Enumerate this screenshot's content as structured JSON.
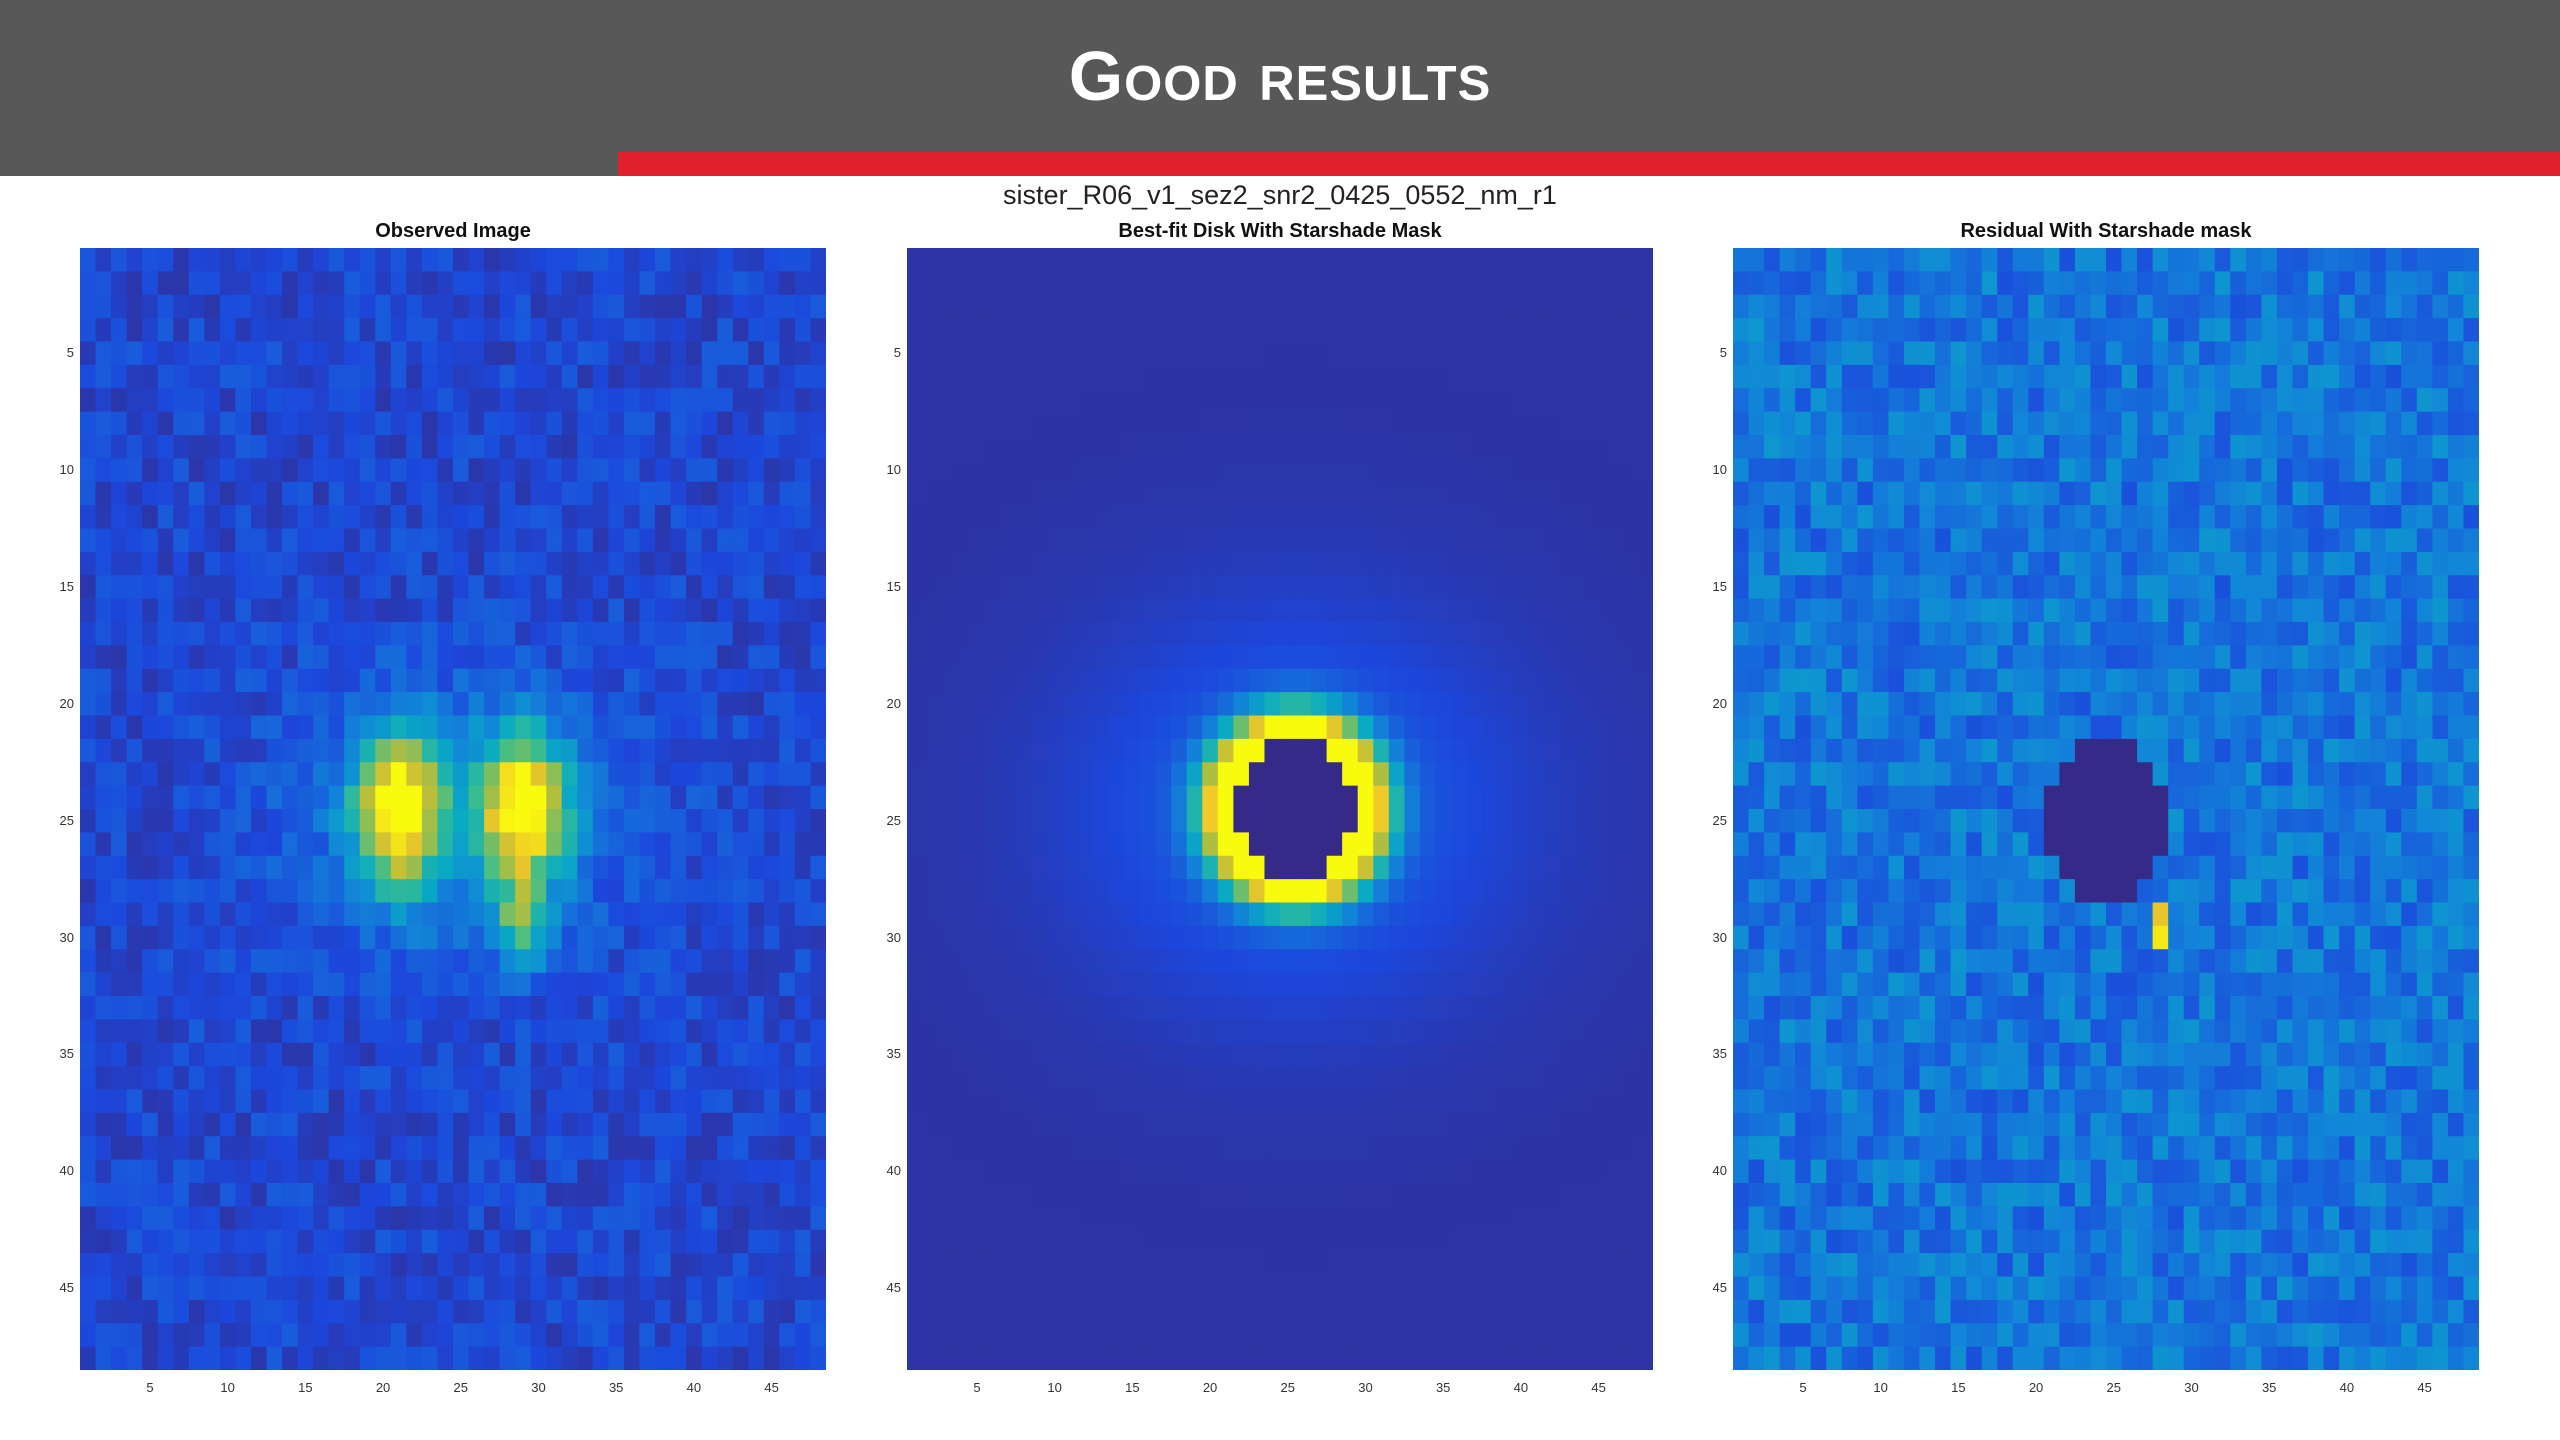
{
  "header": {
    "title": "Good results",
    "bg_color": "#585858",
    "accent_color": "#e0202a"
  },
  "figure": {
    "suptitle": "sister_R06_v1_sez2_snr2_0425_0552_nm_r1"
  },
  "chart_data": [
    {
      "type": "heatmap",
      "title": "Observed Image",
      "colormap": "parula",
      "xlim": [
        0.5,
        48.5
      ],
      "ylim": [
        0.5,
        48.5
      ],
      "xticks": [
        5,
        10,
        15,
        20,
        25,
        30,
        35,
        40,
        45
      ],
      "yticks": [
        5,
        10,
        15,
        20,
        25,
        30,
        35,
        40,
        45
      ],
      "model": {
        "background": 0.14,
        "noise": 0.08,
        "blobs": [
          {
            "x": 21,
            "y": 24.5,
            "sx": 2.0,
            "sy": 2.4,
            "amp": 0.86
          },
          {
            "x": 29,
            "y": 24.5,
            "sx": 2.0,
            "sy": 2.4,
            "amp": 0.84
          },
          {
            "x": 29,
            "y": 29.5,
            "sx": 1.0,
            "sy": 1.2,
            "amp": 0.5
          },
          {
            "x": 25,
            "y": 25,
            "sx": 8.0,
            "sy": 4.0,
            "amp": 0.18
          }
        ]
      }
    },
    {
      "type": "heatmap",
      "title": "Best-fit Disk With Starshade Mask",
      "colormap": "parula",
      "xlim": [
        0.5,
        48.5
      ],
      "ylim": [
        0.5,
        48.5
      ],
      "xticks": [
        5,
        10,
        15,
        20,
        25,
        30,
        35,
        40,
        45
      ],
      "yticks": [
        5,
        10,
        15,
        20,
        25,
        30,
        35,
        40,
        45
      ],
      "model": {
        "background": 0.05,
        "ring": {
          "x": 25.5,
          "y": 24.5,
          "ax": 4.3,
          "ay": 3.0,
          "width": 1.6,
          "amp": 0.95
        },
        "halo": {
          "x": 25.5,
          "y": 24.5,
          "sx": 10,
          "sy": 6,
          "amp": 0.2
        },
        "mask": {
          "x": 25.5,
          "y": 24.5,
          "rx": 3.6,
          "ry": 3.4,
          "value": 0.0
        }
      }
    },
    {
      "type": "heatmap",
      "title": "Residual With Starshade mask",
      "colormap": "parula",
      "xlim": [
        0.5,
        48.5
      ],
      "ylim": [
        0.5,
        48.5
      ],
      "xticks": [
        5,
        10,
        15,
        20,
        25,
        30,
        35,
        40,
        45
      ],
      "yticks": [
        5,
        10,
        15,
        20,
        25,
        30,
        35,
        40,
        45
      ],
      "model": {
        "background": 0.3,
        "noise": 0.12,
        "mask": {
          "x": 24.5,
          "y": 25,
          "rx": 3.7,
          "ry": 3.6,
          "value": 0.0
        },
        "hot": [
          {
            "x": 28,
            "y": 30,
            "value": 0.97
          },
          {
            "x": 28,
            "y": 29,
            "value": 0.9
          }
        ]
      }
    }
  ]
}
